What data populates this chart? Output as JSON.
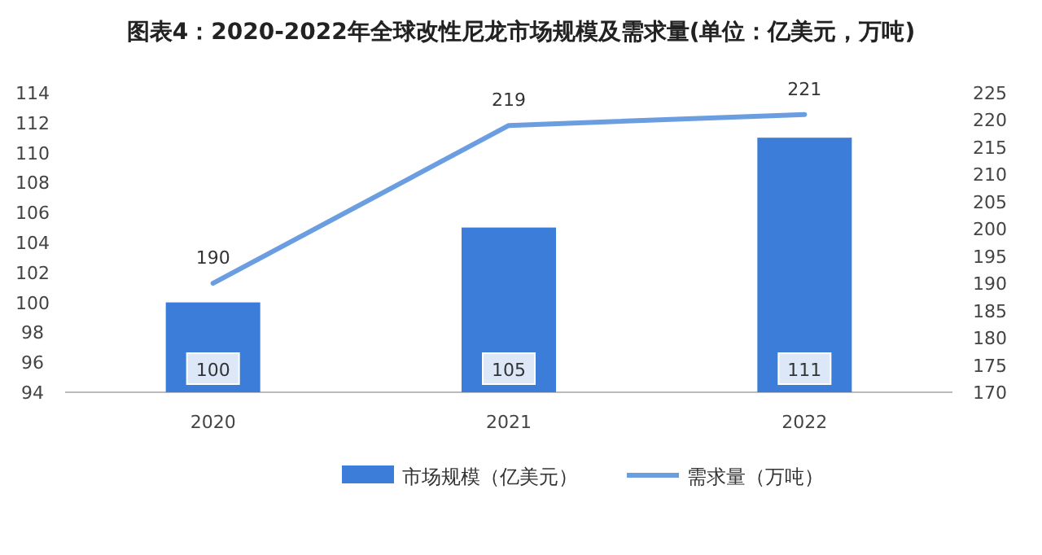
{
  "chart_data": {
    "type": "bar",
    "title": "图表4：2020-2022年全球改性尼龙市场规模及需求量(单位：亿美元，万吨)",
    "categories": [
      "2020",
      "2021",
      "2022"
    ],
    "series": [
      {
        "name": "市场规模（亿美元）",
        "color": "#3b7dd8",
        "values": [
          100,
          105,
          111
        ]
      },
      {
        "name": "需求量（万吨）",
        "type": "line",
        "axis": "y2",
        "color": "#6a9ee0",
        "values": [
          190,
          219,
          221
        ]
      }
    ],
    "ylim": [
      94,
      114
    ],
    "yticks": [
      94,
      96,
      98,
      100,
      102,
      104,
      106,
      108,
      110,
      112,
      114
    ],
    "y2lim": [
      170,
      225
    ],
    "y2ticks": [
      170,
      175,
      180,
      185,
      190,
      195,
      200,
      205,
      210,
      215,
      220,
      225
    ],
    "data_labels": true,
    "legend": "bottom",
    "grid": false
  }
}
